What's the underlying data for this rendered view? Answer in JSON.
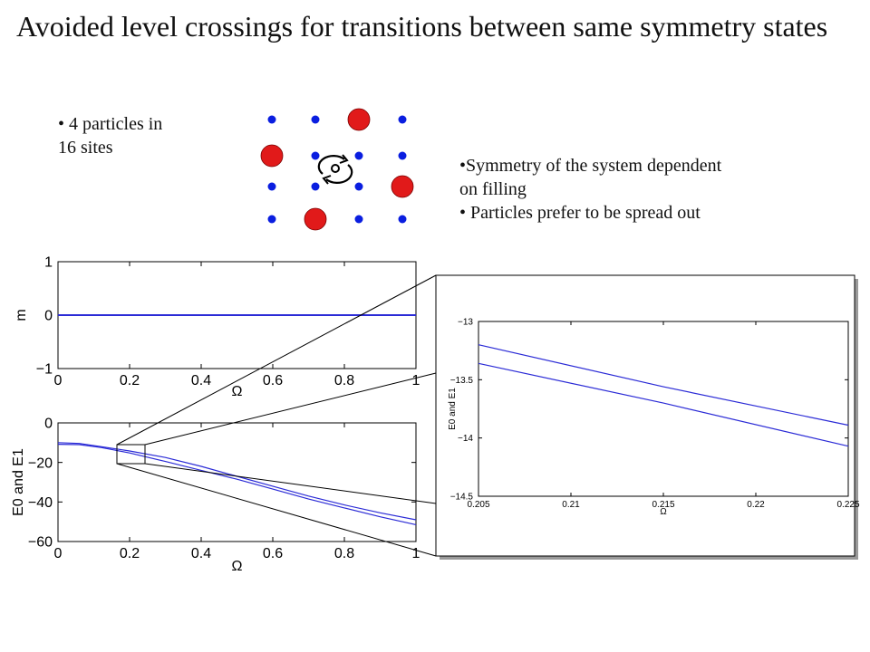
{
  "title": "Avoided level crossings for transitions between same symmetry states",
  "bullets_left": [
    "• 4 particles in",
    "16 sites"
  ],
  "bullets_right": [
    "•Symmetry of the system dependent",
    "on filling",
    "• Particles prefer to be spread out"
  ],
  "colors": {
    "line": "#2b2bd6",
    "particle_large": "#e11a1a",
    "particle_small": "#0a1ee0",
    "axis": "#000000"
  },
  "icons": {
    "rotation": "rotation-arrow-icon"
  },
  "lattice": {
    "grid": [
      [
        "small",
        "small",
        "large",
        "small"
      ],
      [
        "large",
        "small",
        "small",
        "small"
      ],
      [
        "small",
        "small",
        "small",
        "large"
      ],
      [
        "small",
        "large",
        "small",
        "small"
      ]
    ]
  },
  "chart_data": [
    {
      "id": "m-plot",
      "type": "line",
      "title": "",
      "xlabel": "Ω",
      "ylabel": "m",
      "xlim": [
        0,
        1
      ],
      "ylim": [
        -1,
        1
      ],
      "xticks": [
        "0",
        "0.2",
        "0.4",
        "0.6",
        "0.8",
        "1"
      ],
      "yticks": [
        "1",
        "0",
        "−1"
      ],
      "series": [
        {
          "values": [
            [
              0,
              0
            ],
            [
              1,
              0
            ]
          ]
        }
      ]
    },
    {
      "id": "energy-plot",
      "type": "line",
      "title": "",
      "xlabel": "Ω",
      "ylabel": "E0 and E1",
      "xlim": [
        0,
        1
      ],
      "ylim": [
        -60,
        0
      ],
      "xticks": [
        "0",
        "0.2",
        "0.4",
        "0.6",
        "0.8",
        "1"
      ],
      "yticks": [
        "0",
        "−20",
        "−40",
        "−60"
      ],
      "series": [
        {
          "values": [
            [
              0,
              -10
            ],
            [
              0.06,
              -10.4
            ],
            [
              0.12,
              -12.0
            ],
            [
              0.2,
              -14.2
            ],
            [
              0.3,
              -17.5
            ],
            [
              0.4,
              -22
            ],
            [
              0.5,
              -27
            ],
            [
              0.6,
              -32
            ],
            [
              0.7,
              -37
            ],
            [
              0.8,
              -41.5
            ],
            [
              0.9,
              -45.5
            ],
            [
              1,
              -49
            ]
          ]
        },
        {
          "values": [
            [
              0,
              -10.8
            ],
            [
              0.06,
              -11
            ],
            [
              0.12,
              -12.4
            ],
            [
              0.2,
              -15.2
            ],
            [
              0.3,
              -19.5
            ],
            [
              0.4,
              -24
            ],
            [
              0.5,
              -28.5
            ],
            [
              0.6,
              -33.5
            ],
            [
              0.7,
              -38.5
            ],
            [
              0.8,
              -43
            ],
            [
              0.9,
              -47.5
            ],
            [
              1,
              -51.5
            ]
          ]
        }
      ]
    },
    {
      "id": "zoom-plot",
      "type": "line",
      "title": "",
      "xlabel": "Ω",
      "ylabel": "E0 and E1",
      "xlim": [
        0.205,
        0.225
      ],
      "ylim": [
        -14.5,
        -13
      ],
      "xticks": [
        "0.205",
        "0.21",
        "0.215",
        "0.22",
        "0.225"
      ],
      "yticks": [
        "−13",
        "−13.5",
        "−14",
        "−14.5"
      ],
      "series": [
        {
          "values": [
            [
              0.205,
              -13.2
            ],
            [
              0.215,
              -13.56
            ],
            [
              0.225,
              -13.89
            ]
          ]
        },
        {
          "values": [
            [
              0.205,
              -13.36
            ],
            [
              0.215,
              -13.7
            ],
            [
              0.225,
              -14.07
            ]
          ]
        }
      ]
    }
  ]
}
